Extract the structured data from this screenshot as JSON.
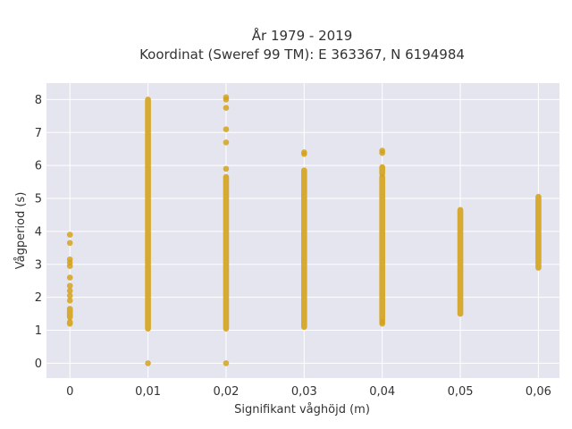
{
  "chart_data": {
    "type": "scatter",
    "title_line1": "År 1979 - 2019",
    "title_line2": "Koordinat (Sweref 99 TM): E 363367, N 6194984",
    "xlabel": "Signifikant våghöjd (m)",
    "ylabel": "Vågperiod (s)",
    "x_ticks": [
      "0",
      "0,01",
      "0,02",
      "0,03",
      "0,04",
      "0,05",
      "0,06"
    ],
    "y_ticks": [
      "0",
      "1",
      "2",
      "3",
      "4",
      "5",
      "6",
      "7",
      "8"
    ],
    "xlim": [
      -0.003,
      0.0627
    ],
    "ylim": [
      -0.45,
      8.5
    ],
    "grid": true,
    "marker_color": "#d4a21c",
    "plot_bg": "#e5e5ef",
    "series": [
      {
        "x": 0,
        "ranges": [
          [
            1.2,
            1.25
          ],
          [
            1.4,
            1.65
          ]
        ],
        "points": [
          1.9,
          2.05,
          2.2,
          2.35,
          2.6,
          2.95,
          3.05,
          3.15,
          3.65,
          3.9
        ]
      },
      {
        "x": 0.01,
        "ranges": [
          [
            1.05,
            8.0
          ]
        ],
        "points": [
          0.0
        ]
      },
      {
        "x": 0.02,
        "ranges": [
          [
            1.05,
            5.65
          ]
        ],
        "points": [
          0.0,
          5.9,
          6.7,
          7.1,
          7.75,
          8.0,
          8.07
        ]
      },
      {
        "x": 0.03,
        "ranges": [
          [
            1.1,
            5.85
          ]
        ],
        "points": [
          6.35,
          6.4
        ]
      },
      {
        "x": 0.04,
        "ranges": [
          [
            1.3,
            5.65
          ],
          [
            5.75,
            5.95
          ]
        ],
        "points": [
          1.2,
          1.25,
          6.38,
          6.45
        ]
      },
      {
        "x": 0.05,
        "ranges": [
          [
            1.5,
            4.65
          ]
        ],
        "points": []
      },
      {
        "x": 0.06,
        "ranges": [
          [
            2.9,
            5.05
          ]
        ],
        "points": []
      }
    ]
  }
}
